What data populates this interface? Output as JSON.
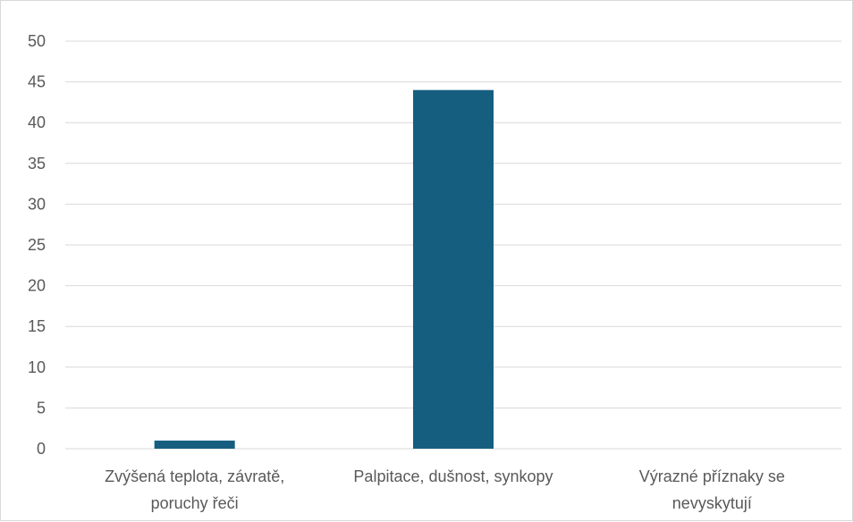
{
  "chart_data": {
    "type": "bar",
    "categories": [
      [
        "Zvýšená teplota, závratě,",
        "poruchy řeči"
      ],
      [
        "Palpitace, dušnost, synkopy"
      ],
      [
        "Výrazné příznaky se",
        "nevyskytují"
      ]
    ],
    "values": [
      1,
      44,
      0
    ],
    "ylim": [
      0,
      50
    ],
    "yticks": [
      0,
      5,
      10,
      15,
      20,
      25,
      30,
      35,
      40,
      45,
      50
    ],
    "grid": true,
    "legend": "none",
    "colors": {
      "bar": "#165e80",
      "grid": "#d9d9d9",
      "text": "#595959"
    }
  }
}
